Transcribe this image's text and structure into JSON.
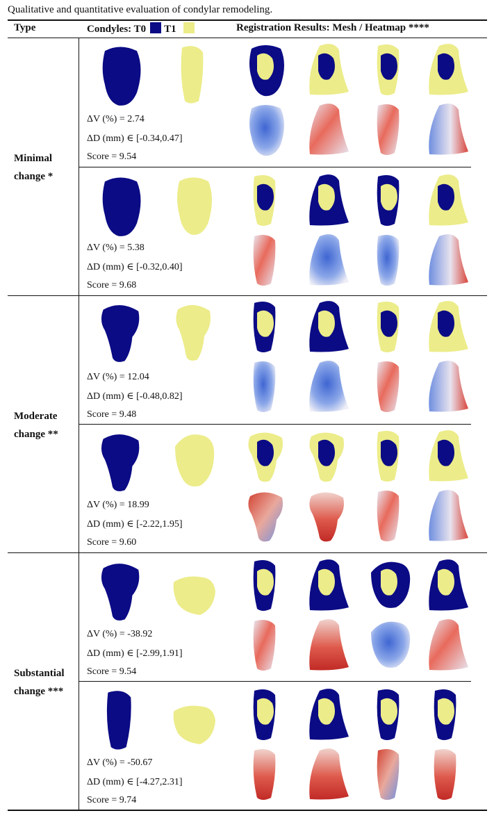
{
  "caption": "Qualitative and quantitative evaluation of condylar remodeling.",
  "header": {
    "type": "Type",
    "condyles_prefix": "Condyles: T0",
    "condyles_t1": "T1",
    "registration": "Registration Results: Mesh / Heatmap ****"
  },
  "colors": {
    "t0": "#0b0b85",
    "t1": "#ecec8a",
    "heat_cool": "#4a72d8",
    "heat_warm": "#d8362e",
    "heat_mid": "#f2eeee"
  },
  "groups": [
    {
      "label_line1": "Minimal",
      "label_line2": "change *"
    },
    {
      "label_line1": "Moderate",
      "label_line2": "change **"
    },
    {
      "label_line1": "Substantial",
      "label_line2": "change ***"
    }
  ],
  "rows": [
    {
      "dv": "ΔV (%) = 2.74",
      "dd": "ΔD (mm)  ∈  [-0.34,0.47]",
      "score": "Score = 9.54"
    },
    {
      "dv": "ΔV (%) = 5.38",
      "dd": "ΔD (mm)  ∈  [-0.32,0.40]",
      "score": "Score = 9.68"
    },
    {
      "dv": "ΔV (%) = 12.04",
      "dd": "ΔD (mm)  ∈  [-0.48,0.82]",
      "score": "Score = 9.48"
    },
    {
      "dv": "ΔV (%) = 18.99",
      "dd": "ΔD (mm)  ∈  [-2.22,1.95]",
      "score": "Score = 9.60"
    },
    {
      "dv": "ΔV (%) = -38.92",
      "dd": "ΔD (mm)  ∈  [-2.99,1.91]",
      "score": "Score = 9.54"
    },
    {
      "dv": "ΔV (%) = -50.67",
      "dd": "ΔD (mm)  ∈  [-4.27,2.31]",
      "score": "Score = 9.74"
    }
  ]
}
